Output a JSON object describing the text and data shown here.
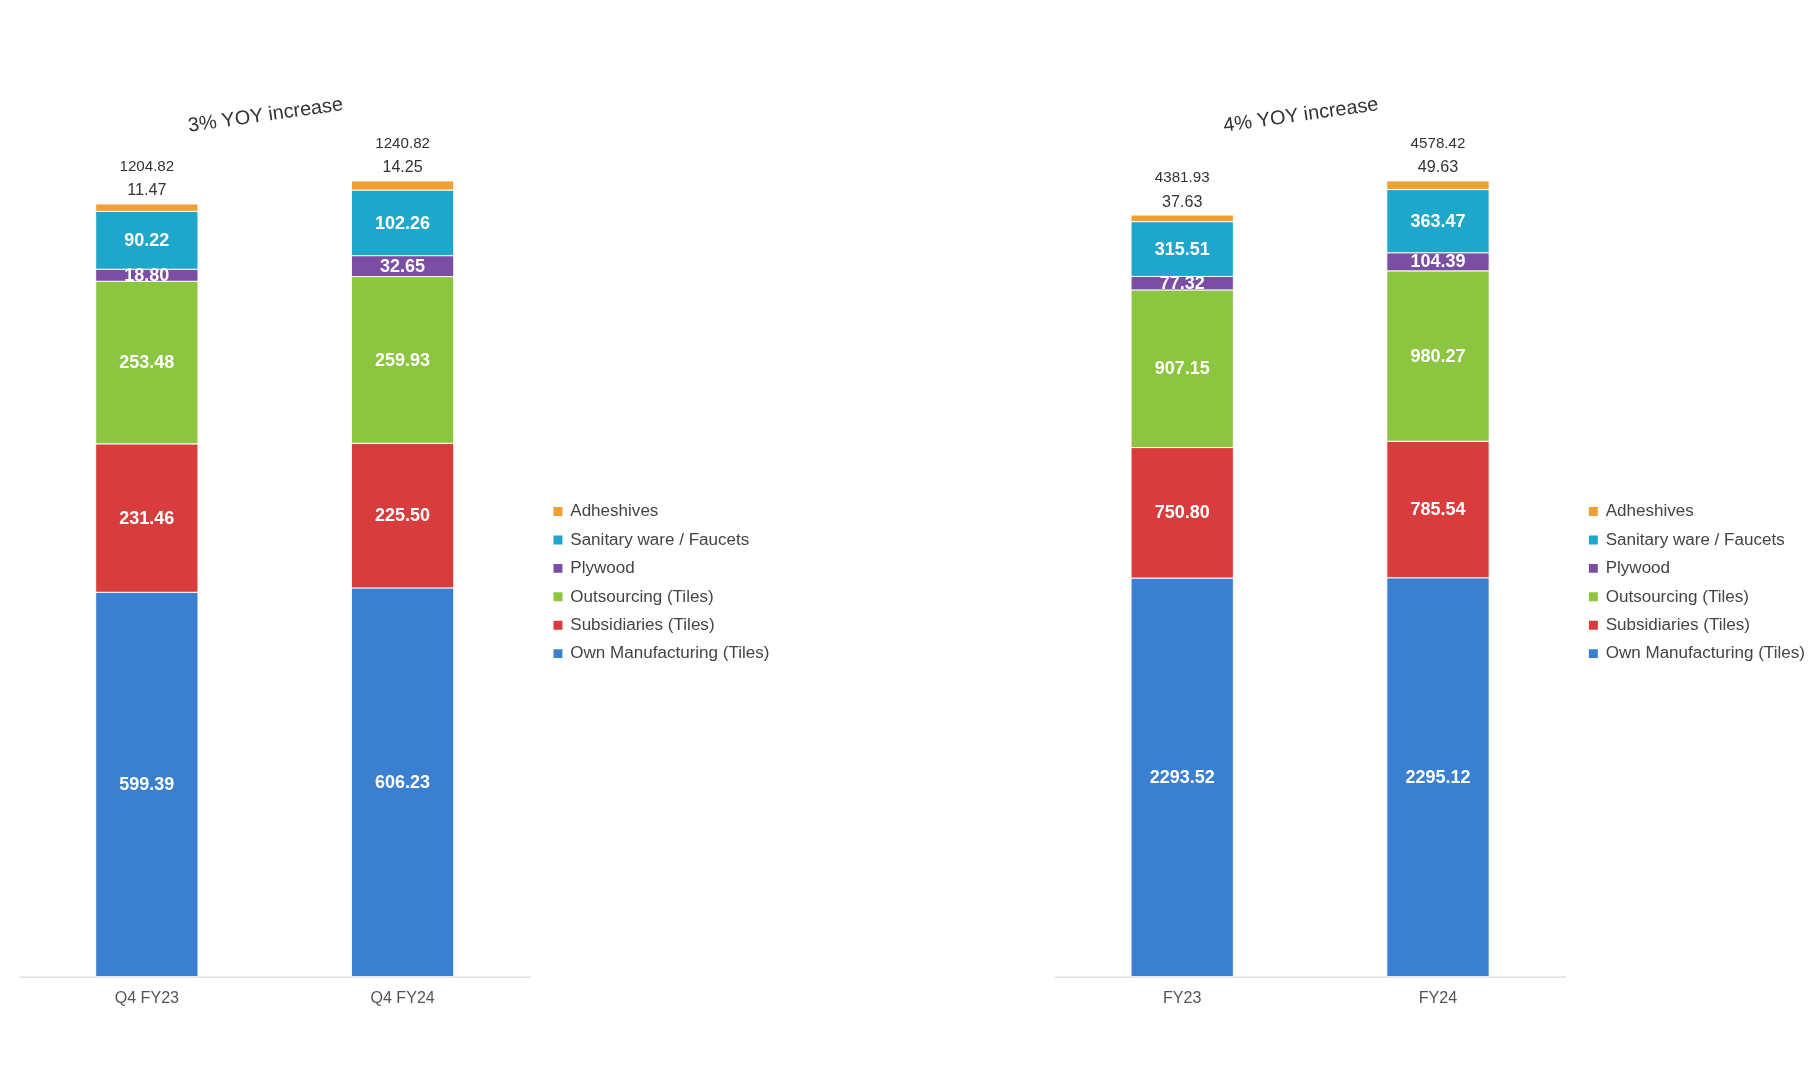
{
  "chart_data": [
    {
      "type": "bar",
      "stacked": true,
      "legend": "right",
      "grid": false,
      "categories": [
        "Q4  FY23",
        "Q4  FY24"
      ],
      "annotations": [
        {
          "text": "3% YOY increase"
        }
      ],
      "totals": [
        "1204.82",
        "1240.82"
      ],
      "series": [
        {
          "name": "Own Manufacturing (Tiles)",
          "color": "#3a7fd0",
          "values": [
            599.39,
            606.23
          ],
          "value_labels": [
            "599.39",
            "606.23"
          ]
        },
        {
          "name": "Subsidiaries (Tiles)",
          "color": "#d83c3c",
          "values": [
            231.46,
            225.5
          ],
          "value_labels": [
            "231.46",
            "225.50"
          ]
        },
        {
          "name": "Outsourcing (Tiles)",
          "color": "#8cc540",
          "values": [
            253.48,
            259.93
          ],
          "value_labels": [
            "253.48",
            "259.93"
          ]
        },
        {
          "name": "Plywood",
          "color": "#7b4ea3",
          "values": [
            18.8,
            32.65
          ],
          "value_labels": [
            "18.80",
            "32.65"
          ]
        },
        {
          "name": "Sanitary ware / Faucets",
          "color": "#1fa7cb",
          "values": [
            90.22,
            102.26
          ],
          "value_labels": [
            "90.22",
            "102.26"
          ]
        },
        {
          "name": "Adheshives",
          "color": "#f0a030",
          "values": [
            11.47,
            14.25
          ],
          "value_labels": [
            "11.47",
            "14.25"
          ]
        }
      ]
    },
    {
      "type": "bar",
      "stacked": true,
      "legend": "right",
      "grid": false,
      "categories": [
        "FY23",
        "FY24"
      ],
      "annotations": [
        {
          "text": "4% YOY increase"
        }
      ],
      "totals": [
        "4381.93",
        "4578.42"
      ],
      "series": [
        {
          "name": "Own Manufacturing (Tiles)",
          "color": "#3a7fd0",
          "values": [
            2293.52,
            2295.12
          ],
          "value_labels": [
            "2293.52",
            "2295.12"
          ]
        },
        {
          "name": "Subsidiaries (Tiles)",
          "color": "#d83c3c",
          "values": [
            750.8,
            785.54
          ],
          "value_labels": [
            "750.80",
            "785.54"
          ]
        },
        {
          "name": "Outsourcing (Tiles)",
          "color": "#8cc540",
          "values": [
            907.15,
            980.27
          ],
          "value_labels": [
            "907.15",
            "980.27"
          ]
        },
        {
          "name": "Plywood",
          "color": "#7b4ea3",
          "values": [
            77.32,
            104.39
          ],
          "value_labels": [
            "77.32",
            "104.39"
          ]
        },
        {
          "name": "Sanitary ware / Faucets",
          "color": "#1fa7cb",
          "values": [
            315.51,
            363.47
          ],
          "value_labels": [
            "315.51",
            "363.47"
          ]
        },
        {
          "name": "Adheshives",
          "color": "#f0a030",
          "values": [
            37.63,
            49.63
          ],
          "value_labels": [
            "37.63",
            "49.63"
          ]
        }
      ]
    }
  ]
}
